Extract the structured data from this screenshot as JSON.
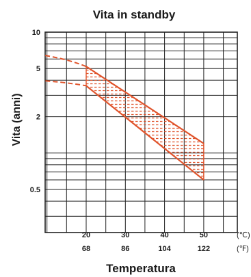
{
  "chart_data": {
    "type": "area",
    "title": "Vita in standby",
    "xlabel": "Temperatura",
    "ylabel": "Vita (anni)",
    "y_scale": "log",
    "grid": true,
    "y_ticks": [
      {
        "value": 10,
        "label": "10"
      },
      {
        "value": 5,
        "label": "5"
      },
      {
        "value": 2,
        "label": "2"
      },
      {
        "value": 0.5,
        "label": "0.5"
      }
    ],
    "x_ticks": [
      {
        "celsius": 20,
        "label_c": "20",
        "label_f": "68"
      },
      {
        "celsius": 30,
        "label_c": "30",
        "label_f": "86"
      },
      {
        "celsius": 40,
        "label_c": "40",
        "label_f": "104"
      },
      {
        "celsius": 50,
        "label_c": "50",
        "label_f": "122"
      }
    ],
    "unit_labels": {
      "celsius": "(℃)",
      "fahrenheit": "(℉)"
    },
    "series": [
      {
        "x_celsius": [
          20,
          50
        ],
        "y": [
          5.2,
          1.2
        ]
      },
      {
        "x_celsius": [
          20,
          50
        ],
        "y": [
          3.6,
          0.6
        ]
      }
    ],
    "extrapolation": [
      {
        "x_celsius": [
          0,
          12,
          20
        ],
        "y": [
          6.9,
          6.6,
          5.2
        ]
      },
      {
        "x_celsius": [
          0,
          12,
          20
        ],
        "y": [
          4.1,
          4.0,
          3.6
        ]
      }
    ],
    "colors": {
      "band_line": "#e0542c",
      "hatch": "#e0542c",
      "grid": "#222222",
      "text": "#1a1a1a"
    }
  }
}
